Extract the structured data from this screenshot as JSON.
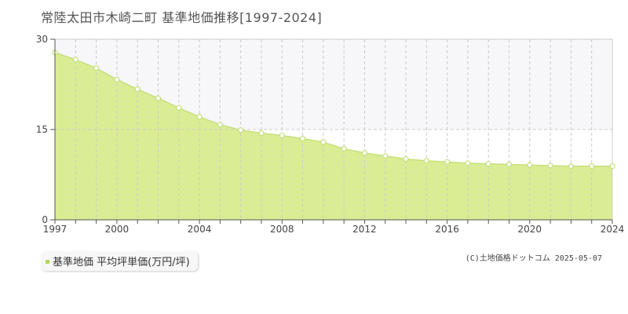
{
  "title": "常陸太田市木崎二町 基準地価推移[1997-2024]",
  "legend": {
    "label": "基準地価 平均坪単価(万円/坪)"
  },
  "copyright": "(C)土地価格ドットコム 2025-05-07",
  "colors": {
    "area_fill": "#dbed94",
    "line": "#c5e07a",
    "highlight_band": "#f7f6f9",
    "grid": "#cccccc",
    "legend_marker": "#b5d85a"
  },
  "chart_data": {
    "type": "area",
    "title": "常陸太田市木崎二町 基準地価推移[1997-2024]",
    "xlabel": "",
    "ylabel": "",
    "xlim": [
      1997,
      2024
    ],
    "ylim": [
      0,
      30
    ],
    "y_ticks": [
      0,
      15,
      30
    ],
    "x_tick_labels": [
      "1997",
      "2000",
      "2004",
      "2008",
      "2012",
      "2016",
      "2020",
      "2024"
    ],
    "grid": true,
    "series": [
      {
        "name": "基準地価 平均坪単価(万円/坪)",
        "x": [
          1997,
          1998,
          1999,
          2000,
          2001,
          2002,
          2003,
          2004,
          2005,
          2006,
          2007,
          2008,
          2009,
          2010,
          2011,
          2012,
          2013,
          2014,
          2015,
          2016,
          2017,
          2018,
          2019,
          2020,
          2021,
          2022,
          2023,
          2024
        ],
        "values": [
          27.8,
          26.6,
          25.2,
          23.3,
          21.7,
          20.2,
          18.6,
          17.1,
          15.8,
          14.9,
          14.4,
          14.0,
          13.5,
          12.9,
          11.8,
          11.1,
          10.6,
          10.1,
          9.8,
          9.6,
          9.4,
          9.3,
          9.2,
          9.1,
          9.0,
          8.9,
          8.9,
          8.9
        ]
      }
    ]
  }
}
